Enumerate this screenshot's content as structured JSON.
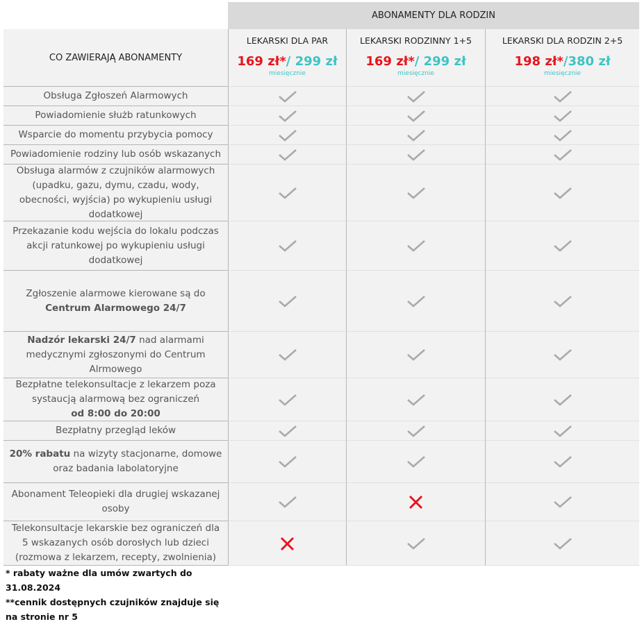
{
  "header": {
    "group_title": "ABONAMENTY DLA RODZIN",
    "features_title": "CO ZAWIERAJĄ ABONAMENTY"
  },
  "plans": [
    {
      "name": "LEKARSKI DLA PAR",
      "promo_price": "169 zł*",
      "regular_price": "/ 299 zł",
      "period": "miesięcznie"
    },
    {
      "name": "LEKARSKI RODZINNY 1+5",
      "promo_price": "169 zł*",
      "regular_price": "/ 299 zł",
      "period": "miesięcznie"
    },
    {
      "name": "LEKARSKI DLA RODZIN 2+5",
      "promo_price": "198 zł*",
      "regular_price": "/380 zł",
      "period": "miesięcznie"
    }
  ],
  "features": [
    {
      "segments": [
        {
          "text": "Obsługa Zgłoszeń Alarmowych",
          "bold": false
        }
      ],
      "included": [
        true,
        true,
        true
      ]
    },
    {
      "segments": [
        {
          "text": "Powiadomienie służb ratunkowych",
          "bold": false
        }
      ],
      "included": [
        true,
        true,
        true
      ]
    },
    {
      "segments": [
        {
          "text": "Wsparcie do momentu przybycia pomocy",
          "bold": false
        }
      ],
      "included": [
        true,
        true,
        true
      ]
    },
    {
      "segments": [
        {
          "text": "Powiadomienie rodziny lub osób wskazanych",
          "bold": false
        }
      ],
      "included": [
        true,
        true,
        true
      ]
    },
    {
      "segments": [
        {
          "text": "Obsługa alarmów z czujników alarmowych (upadku, gazu, dymu, czadu, wody, obecności, wyjścia) po wykupieniu usługi dodatkowej",
          "bold": false
        }
      ],
      "included": [
        true,
        true,
        true
      ]
    },
    {
      "segments": [
        {
          "text": "Przekazanie kodu wejścia do lokalu podczas akcji ratunkowej po wykupieniu usługi dodatkowej",
          "bold": false
        }
      ],
      "included": [
        true,
        true,
        true
      ]
    },
    {
      "segments": [
        {
          "text": "Zgłoszenie alarmowe kierowane są do",
          "bold": false
        },
        {
          "text": "Centrum Alarmowego 24/7",
          "bold": true
        }
      ],
      "included": [
        true,
        true,
        true
      ]
    },
    {
      "segments": [
        {
          "text": "Nadzór lekarski 24/7",
          "bold": true
        },
        {
          "text": " nad alarmami medycznymi zgłoszonymi do Centrum Alrmowego",
          "bold": false
        }
      ],
      "included": [
        true,
        true,
        true
      ]
    },
    {
      "segments": [
        {
          "text": "Bezpłatne telekonsultacje z lekarzem poza systaucją alarmową bez ograniczeń",
          "bold": false
        },
        {
          "text": "od 8:00 do 20:00",
          "bold": true
        }
      ],
      "included": [
        true,
        true,
        true
      ]
    },
    {
      "segments": [
        {
          "text": "Bezpłatny przegląd leków",
          "bold": false
        }
      ],
      "included": [
        true,
        true,
        true
      ]
    },
    {
      "segments": [
        {
          "text": "20% rabatu",
          "bold": true
        },
        {
          "text": " na wizyty stacjonarne, domowe oraz badania labolatoryjne",
          "bold": false
        }
      ],
      "included": [
        true,
        true,
        true
      ]
    },
    {
      "segments": [
        {
          "text": "Abonament Teleopieki dla drugiej wskazanej osoby",
          "bold": false
        }
      ],
      "included": [
        true,
        false,
        true
      ]
    },
    {
      "segments": [
        {
          "text": "Telekonsultacje lekarskie bez ograniczeń dla 5 wskazanych osób dorosłych lub dzieci (rozmowa z lekarzem, recepty, zwolnienia)",
          "bold": false
        }
      ],
      "included": [
        false,
        true,
        true
      ]
    }
  ],
  "footnotes": [
    "* rabaty ważne dla umów zwartych do 31.08.2024",
    "**cennik dostępnych czujników znajduje się na stronie nr 5"
  ]
}
